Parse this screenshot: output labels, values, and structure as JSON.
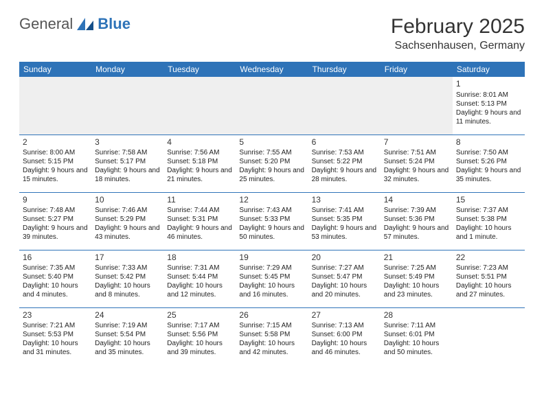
{
  "logo": {
    "word1": "General",
    "word2": "Blue"
  },
  "title": "February 2025",
  "location": "Sachsenhausen, Germany",
  "colors": {
    "header_bg": "#2e73b8",
    "header_fg": "#ffffff",
    "rule": "#2e73b8",
    "blank_bg": "#efefef",
    "text": "#222222",
    "logo_accent": "#2e73b8",
    "logo_gray": "#555555"
  },
  "weekdays": [
    "Sunday",
    "Monday",
    "Tuesday",
    "Wednesday",
    "Thursday",
    "Friday",
    "Saturday"
  ],
  "grid": [
    [
      null,
      null,
      null,
      null,
      null,
      null,
      {
        "n": "1",
        "sr": "8:01 AM",
        "ss": "5:13 PM",
        "dl": "9 hours and 11 minutes."
      }
    ],
    [
      {
        "n": "2",
        "sr": "8:00 AM",
        "ss": "5:15 PM",
        "dl": "9 hours and 15 minutes."
      },
      {
        "n": "3",
        "sr": "7:58 AM",
        "ss": "5:17 PM",
        "dl": "9 hours and 18 minutes."
      },
      {
        "n": "4",
        "sr": "7:56 AM",
        "ss": "5:18 PM",
        "dl": "9 hours and 21 minutes."
      },
      {
        "n": "5",
        "sr": "7:55 AM",
        "ss": "5:20 PM",
        "dl": "9 hours and 25 minutes."
      },
      {
        "n": "6",
        "sr": "7:53 AM",
        "ss": "5:22 PM",
        "dl": "9 hours and 28 minutes."
      },
      {
        "n": "7",
        "sr": "7:51 AM",
        "ss": "5:24 PM",
        "dl": "9 hours and 32 minutes."
      },
      {
        "n": "8",
        "sr": "7:50 AM",
        "ss": "5:26 PM",
        "dl": "9 hours and 35 minutes."
      }
    ],
    [
      {
        "n": "9",
        "sr": "7:48 AM",
        "ss": "5:27 PM",
        "dl": "9 hours and 39 minutes."
      },
      {
        "n": "10",
        "sr": "7:46 AM",
        "ss": "5:29 PM",
        "dl": "9 hours and 43 minutes."
      },
      {
        "n": "11",
        "sr": "7:44 AM",
        "ss": "5:31 PM",
        "dl": "9 hours and 46 minutes."
      },
      {
        "n": "12",
        "sr": "7:43 AM",
        "ss": "5:33 PM",
        "dl": "9 hours and 50 minutes."
      },
      {
        "n": "13",
        "sr": "7:41 AM",
        "ss": "5:35 PM",
        "dl": "9 hours and 53 minutes."
      },
      {
        "n": "14",
        "sr": "7:39 AM",
        "ss": "5:36 PM",
        "dl": "9 hours and 57 minutes."
      },
      {
        "n": "15",
        "sr": "7:37 AM",
        "ss": "5:38 PM",
        "dl": "10 hours and 1 minute."
      }
    ],
    [
      {
        "n": "16",
        "sr": "7:35 AM",
        "ss": "5:40 PM",
        "dl": "10 hours and 4 minutes."
      },
      {
        "n": "17",
        "sr": "7:33 AM",
        "ss": "5:42 PM",
        "dl": "10 hours and 8 minutes."
      },
      {
        "n": "18",
        "sr": "7:31 AM",
        "ss": "5:44 PM",
        "dl": "10 hours and 12 minutes."
      },
      {
        "n": "19",
        "sr": "7:29 AM",
        "ss": "5:45 PM",
        "dl": "10 hours and 16 minutes."
      },
      {
        "n": "20",
        "sr": "7:27 AM",
        "ss": "5:47 PM",
        "dl": "10 hours and 20 minutes."
      },
      {
        "n": "21",
        "sr": "7:25 AM",
        "ss": "5:49 PM",
        "dl": "10 hours and 23 minutes."
      },
      {
        "n": "22",
        "sr": "7:23 AM",
        "ss": "5:51 PM",
        "dl": "10 hours and 27 minutes."
      }
    ],
    [
      {
        "n": "23",
        "sr": "7:21 AM",
        "ss": "5:53 PM",
        "dl": "10 hours and 31 minutes."
      },
      {
        "n": "24",
        "sr": "7:19 AM",
        "ss": "5:54 PM",
        "dl": "10 hours and 35 minutes."
      },
      {
        "n": "25",
        "sr": "7:17 AM",
        "ss": "5:56 PM",
        "dl": "10 hours and 39 minutes."
      },
      {
        "n": "26",
        "sr": "7:15 AM",
        "ss": "5:58 PM",
        "dl": "10 hours and 42 minutes."
      },
      {
        "n": "27",
        "sr": "7:13 AM",
        "ss": "6:00 PM",
        "dl": "10 hours and 46 minutes."
      },
      {
        "n": "28",
        "sr": "7:11 AM",
        "ss": "6:01 PM",
        "dl": "10 hours and 50 minutes."
      },
      null
    ]
  ],
  "labels": {
    "sunrise": "Sunrise:",
    "sunset": "Sunset:",
    "daylight": "Daylight:"
  },
  "layout": {
    "cell_font_size": 10,
    "daynum_font_size": 12,
    "header_font_size": 12,
    "title_font_size": 30,
    "location_font_size": 16
  }
}
